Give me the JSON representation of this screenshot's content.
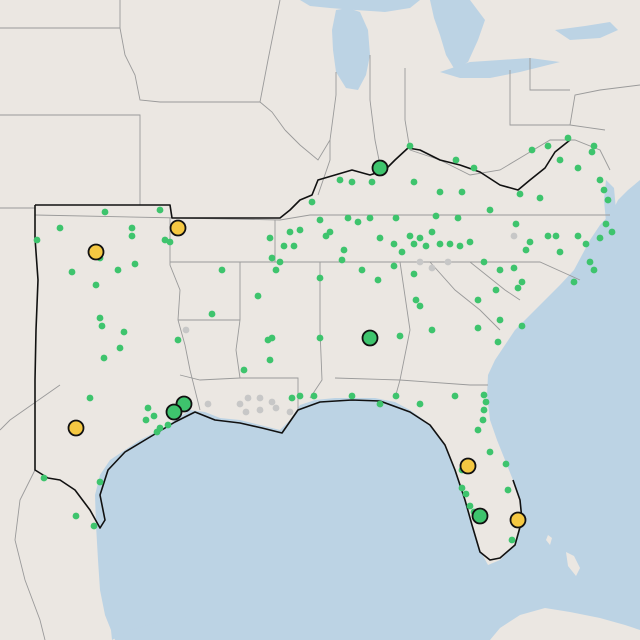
{
  "map": {
    "colors": {
      "land": "#ebe7e2",
      "water": "#bcd3e4",
      "state_lines": "#9a9a9a",
      "region_outline": "#111111",
      "site_green": "#3ec46d",
      "site_gray": "#c7c7c7",
      "site_yellow": "#f5c842"
    },
    "legend": null,
    "labels": []
  }
}
